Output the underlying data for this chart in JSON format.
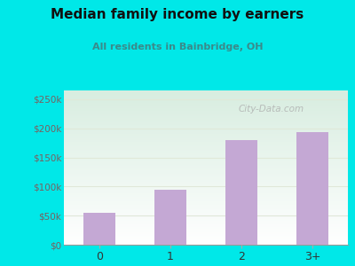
{
  "categories": [
    "0",
    "1",
    "2",
    "3+"
  ],
  "values": [
    55000,
    95000,
    180000,
    193000
  ],
  "bar_color": "#c4a8d4",
  "title": "Median family income by earners",
  "subtitle": "All residents in Bainbridge, OH",
  "title_color": "#111111",
  "subtitle_color": "#3a8a8a",
  "background_color": "#00e8e8",
  "ytick_labels": [
    "$0",
    "$50k",
    "$100k",
    "$150k",
    "$200k",
    "$250k"
  ],
  "ytick_values": [
    0,
    50000,
    100000,
    150000,
    200000,
    250000
  ],
  "ylim": [
    0,
    265000
  ],
  "watermark": "City-Data.com",
  "ytick_color": "#7a6060",
  "xtick_color": "#333333",
  "grid_color": "#e0e8d8",
  "plot_bg_color_top": "#d8ede0",
  "plot_bg_color_bottom": "#ffffff"
}
